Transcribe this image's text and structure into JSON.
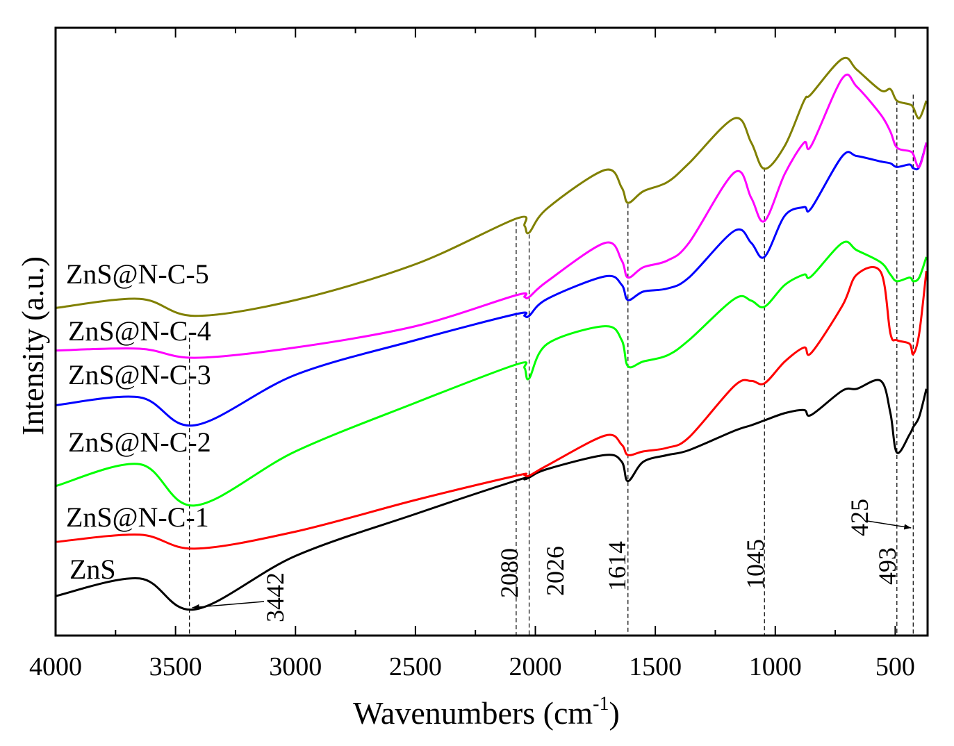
{
  "chart_data": {
    "type": "line",
    "title": "",
    "xlabel": "Wavenumbers (cm",
    "xlabel_sup": "-1",
    "xlabel_close": ")",
    "ylabel": "Intensity (a.u.)",
    "xlim": [
      4000,
      365
    ],
    "ylim": [
      0,
      100
    ],
    "x_reversed": true,
    "grid": false,
    "x_ticks": [
      4000,
      3500,
      3000,
      2500,
      2000,
      1500,
      1000,
      500
    ],
    "x_tick_labels": [
      "4000",
      "3500",
      "3000",
      "2500",
      "2000",
      "1500",
      "1000",
      "500"
    ],
    "x": [
      4000,
      3650,
      3420,
      3000,
      2500,
      2080,
      2045,
      2026,
      1950,
      1710,
      1640,
      1614,
      1550,
      1450,
      1360,
      1170,
      1100,
      1045,
      960,
      880,
      850,
      720,
      660,
      560,
      520,
      493,
      440,
      425,
      400,
      370
    ],
    "series": [
      {
        "name": "ZnS",
        "color": "#000000",
        "values": [
          6.5,
          9.4,
          4.3,
          13.1,
          20.0,
          25.5,
          25.7,
          26.0,
          27.4,
          29.7,
          28.6,
          25.4,
          28.6,
          29.7,
          30.5,
          33.7,
          34.6,
          35.4,
          36.6,
          37.1,
          36.3,
          40.3,
          40.6,
          41.9,
          36.6,
          30.1,
          33.1,
          34.3,
          36.0,
          40.6
        ]
      },
      {
        "name": "ZnS@N-C-1",
        "color": "#ff0000",
        "values": [
          15.4,
          16.6,
          14.3,
          17.1,
          22.3,
          26.3,
          26.4,
          26.3,
          28.0,
          32.9,
          31.4,
          29.7,
          30.3,
          30.9,
          32.6,
          41.1,
          41.9,
          41.5,
          45.1,
          47.4,
          46.5,
          54.3,
          59.4,
          59.8,
          49.7,
          48.6,
          48.0,
          46.3,
          49.7,
          60.0
        ]
      },
      {
        "name": "ZnS@N-C-2",
        "color": "#00ff00",
        "values": [
          24.6,
          28.2,
          21.4,
          30.3,
          38.3,
          44.6,
          44.0,
          42.3,
          48.0,
          50.9,
          48.6,
          44.3,
          45.1,
          46.1,
          48.6,
          55.4,
          55.1,
          54.1,
          57.7,
          59.4,
          59.1,
          64.6,
          63.4,
          61.4,
          59.4,
          58.3,
          58.9,
          58.3,
          58.9,
          62.3
        ]
      },
      {
        "name": "ZnS@N-C-3",
        "color": "#0000ff",
        "values": [
          37.9,
          39.2,
          34.6,
          42.9,
          48.6,
          52.9,
          52.6,
          52.6,
          55.4,
          59.1,
          57.7,
          55.2,
          56.6,
          57.1,
          58.9,
          66.6,
          64.6,
          62.3,
          69.1,
          70.5,
          70.3,
          78.9,
          78.9,
          78.0,
          77.7,
          77.1,
          77.5,
          76.9,
          77.1,
          81.1
        ]
      },
      {
        "name": "ZnS@N-C-4",
        "color": "#ff00ff",
        "values": [
          46.9,
          47.2,
          45.7,
          47.4,
          50.9,
          56.0,
          55.7,
          55.7,
          58.3,
          64.6,
          61.7,
          58.9,
          60.6,
          61.7,
          64.6,
          76.2,
          72.0,
          68.2,
          76.0,
          81.1,
          80.6,
          91.7,
          90.3,
          85.7,
          82.9,
          80.3,
          79.7,
          79.2,
          77.1,
          81.1
        ]
      },
      {
        "name": "ZnS@N-C-5",
        "color": "#808000",
        "values": [
          53.9,
          55.4,
          52.6,
          55.2,
          61.1,
          68.6,
          67.4,
          66.3,
          70.3,
          76.6,
          73.7,
          71.2,
          73.1,
          74.6,
          77.7,
          85.1,
          81.1,
          76.8,
          80.6,
          88.0,
          89.1,
          94.9,
          93.1,
          89.7,
          89.9,
          88.0,
          87.4,
          86.9,
          85.1,
          88.0
        ]
      }
    ],
    "annotations": [
      {
        "label": "3442",
        "wavenumber": 3442,
        "line_top": 49,
        "arrow": true
      },
      {
        "label": "2080",
        "wavenumber": 2080,
        "line_top": 68
      },
      {
        "label": "2026",
        "wavenumber": 2026,
        "line_top": 66
      },
      {
        "label": "1614",
        "wavenumber": 1614,
        "line_top": 71
      },
      {
        "label": "1045",
        "wavenumber": 1045,
        "line_top": 77
      },
      {
        "label": "493",
        "wavenumber": 493,
        "line_top": 88
      },
      {
        "label": "425",
        "wavenumber": 425,
        "line_top": 89,
        "arrow": true
      }
    ]
  }
}
